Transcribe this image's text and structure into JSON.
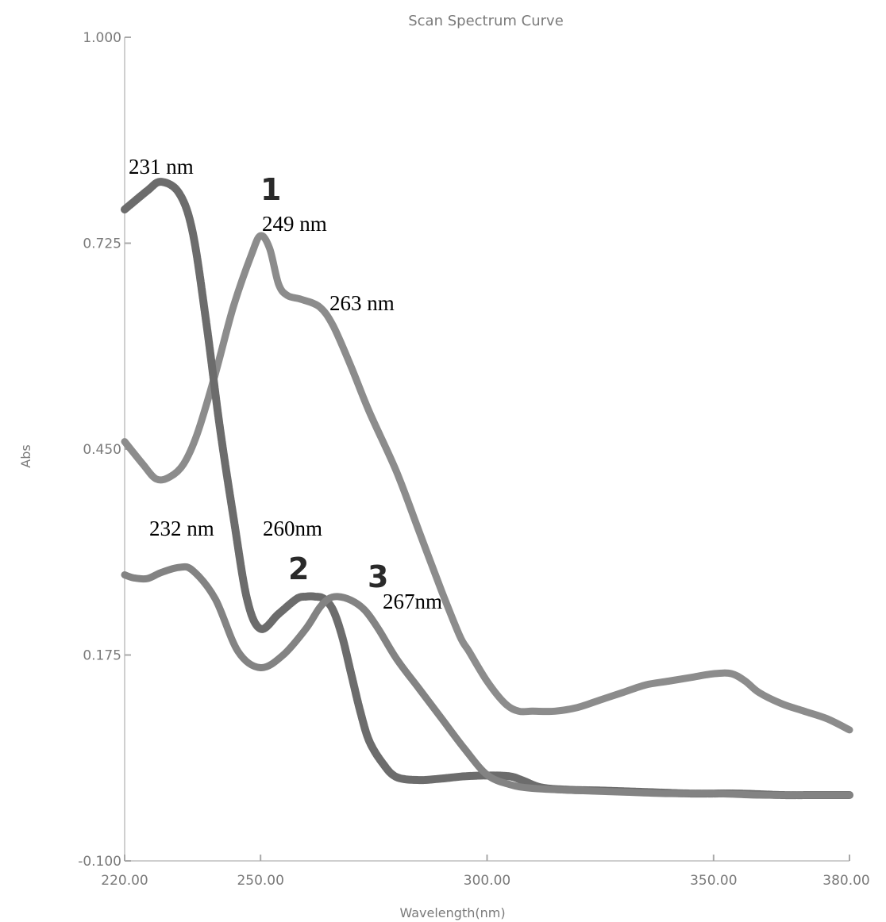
{
  "chart_data": {
    "type": "line",
    "title": "Scan Spectrum Curve",
    "xlabel": "Wavelength(nm)",
    "ylabel": "Abs",
    "xlim": [
      220,
      380
    ],
    "ylim": [
      -0.1,
      1.0
    ],
    "x_ticks": [
      "220.00",
      "250.00",
      "300.00",
      "350.00",
      "380.00"
    ],
    "x_tick_values": [
      220,
      250,
      300,
      350,
      380
    ],
    "y_ticks": [
      "-0.100",
      "0.175",
      "0.450",
      "0.725",
      "1.000"
    ],
    "y_tick_values": [
      -0.1,
      0.175,
      0.45,
      0.725,
      1.0
    ],
    "grid": false,
    "legend": "none",
    "series": [
      {
        "label": "1",
        "color": "#8c8c8c",
        "x": [
          220,
          224,
          227,
          230,
          233,
          236,
          240,
          244,
          248,
          250,
          252,
          254,
          256,
          259,
          263,
          266,
          270,
          274,
          280,
          285,
          290,
          294,
          296,
          300,
          304,
          307,
          310,
          315,
          320,
          325,
          330,
          335,
          340,
          345,
          350,
          354,
          357,
          360,
          365,
          370,
          375,
          380
        ],
        "y": [
          0.46,
          0.43,
          0.41,
          0.413,
          0.43,
          0.47,
          0.55,
          0.64,
          0.71,
          0.735,
          0.718,
          0.67,
          0.655,
          0.65,
          0.64,
          0.615,
          0.56,
          0.5,
          0.42,
          0.34,
          0.26,
          0.2,
          0.18,
          0.14,
          0.11,
          0.1,
          0.1,
          0.1,
          0.105,
          0.115,
          0.125,
          0.135,
          0.14,
          0.145,
          0.15,
          0.15,
          0.14,
          0.125,
          0.11,
          0.1,
          0.09,
          0.075
        ]
      },
      {
        "label": "2",
        "color": "#6c6c6c",
        "x": [
          220,
          225,
          228,
          232,
          235,
          238,
          241,
          244,
          247,
          250,
          254,
          258,
          260,
          262,
          264,
          266,
          268,
          270,
          272,
          274,
          277,
          280,
          285,
          290,
          295,
          300,
          305,
          308,
          312,
          318,
          325,
          335,
          345,
          355,
          365,
          372,
          380
        ],
        "y": [
          0.77,
          0.795,
          0.807,
          0.792,
          0.74,
          0.62,
          0.48,
          0.36,
          0.25,
          0.21,
          0.23,
          0.25,
          0.253,
          0.253,
          0.25,
          0.235,
          0.2,
          0.15,
          0.1,
          0.06,
          0.03,
          0.012,
          0.008,
          0.01,
          0.013,
          0.014,
          0.013,
          0.007,
          -0.002,
          -0.005,
          -0.006,
          -0.008,
          -0.01,
          -0.01,
          -0.012,
          -0.012,
          -0.012
        ]
      },
      {
        "label": "3",
        "color": "#838383",
        "x": [
          220,
          222,
          225,
          228,
          232,
          235,
          240,
          245,
          250,
          255,
          260,
          263,
          265,
          267,
          270,
          273,
          276,
          280,
          285,
          290,
          295,
          300,
          305,
          310,
          320,
          330,
          340,
          350,
          360,
          370,
          380
        ],
        "y": [
          0.282,
          0.278,
          0.277,
          0.285,
          0.292,
          0.288,
          0.25,
          0.18,
          0.158,
          0.175,
          0.21,
          0.238,
          0.25,
          0.253,
          0.248,
          0.235,
          0.21,
          0.17,
          0.13,
          0.09,
          0.05,
          0.015,
          0.002,
          -0.003,
          -0.006,
          -0.008,
          -0.01,
          -0.01,
          -0.012,
          -0.012,
          -0.012
        ]
      }
    ],
    "annotations": [
      {
        "text": "231 nm",
        "x": 231,
        "y": 0.8,
        "placement": "above"
      },
      {
        "text": "249 nm",
        "x": 249,
        "y": 0.735,
        "placement": "right"
      },
      {
        "text": "263 nm",
        "x": 263,
        "y": 0.64,
        "placement": "right"
      },
      {
        "text": "232 nm",
        "x": 232,
        "y": 0.29,
        "placement": "above"
      },
      {
        "text": "260nm",
        "x": 260,
        "y": 0.253,
        "placement": "above"
      },
      {
        "text": "267nm",
        "x": 267,
        "y": 0.253,
        "placement": "right"
      }
    ],
    "curve_numbers": [
      "1",
      "2",
      "3"
    ]
  }
}
